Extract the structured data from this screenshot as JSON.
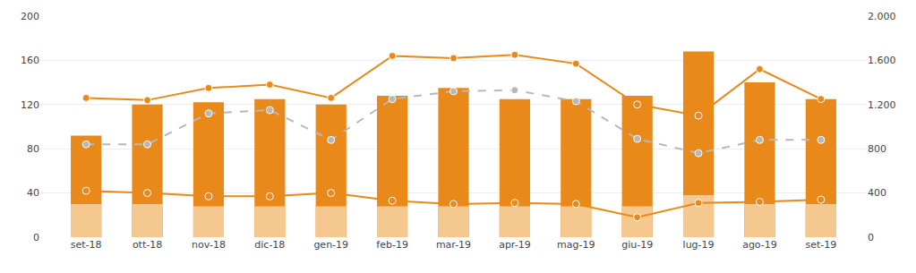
{
  "chart_data": {
    "type": "bar",
    "categories": [
      "set-18",
      "ott-18",
      "nov-18",
      "dic-18",
      "gen-19",
      "feb-19",
      "mar-19",
      "apr-19",
      "mag-19",
      "giu-19",
      "lug-19",
      "ago-19",
      "set-19"
    ],
    "series": [
      {
        "type": "bar",
        "color": "#e8891a",
        "values": [
          92,
          120,
          122,
          125,
          120,
          128,
          135,
          125,
          125,
          128,
          168,
          140,
          125
        ]
      },
      {
        "type": "bar",
        "color": "#f5c890",
        "values": [
          30,
          30,
          28,
          28,
          28,
          28,
          28,
          28,
          28,
          28,
          38,
          30,
          30
        ]
      },
      {
        "type": "line",
        "color": "#e8891a",
        "marker": "circle",
        "line_style": "solid",
        "values": [
          126,
          124,
          135,
          138,
          126,
          164,
          162,
          165,
          157,
          120,
          110,
          152,
          125
        ]
      },
      {
        "type": "line",
        "color": "#e8891a",
        "marker": "circle",
        "line_style": "solid",
        "values": [
          42,
          40,
          37,
          37,
          40,
          33,
          30,
          31,
          30,
          18,
          31,
          32,
          34
        ]
      },
      {
        "type": "line",
        "color": "#b8b8b8",
        "marker": "circle",
        "line_style": "dashed",
        "values": [
          84,
          84,
          112,
          115,
          88,
          125,
          132,
          133,
          123,
          89,
          76,
          88,
          88
        ]
      }
    ],
    "ylim": [
      0,
      200
    ],
    "yticks": [
      0,
      40,
      80,
      120,
      160,
      200
    ],
    "y2lim": [
      0,
      2000
    ],
    "y2ticks": [
      0,
      400,
      800,
      {
        "value": 1200,
        "label": "1.200"
      },
      {
        "value": 1600,
        "label": "1.600"
      },
      {
        "value": 2000,
        "label": "2.000"
      }
    ],
    "grid": true
  }
}
